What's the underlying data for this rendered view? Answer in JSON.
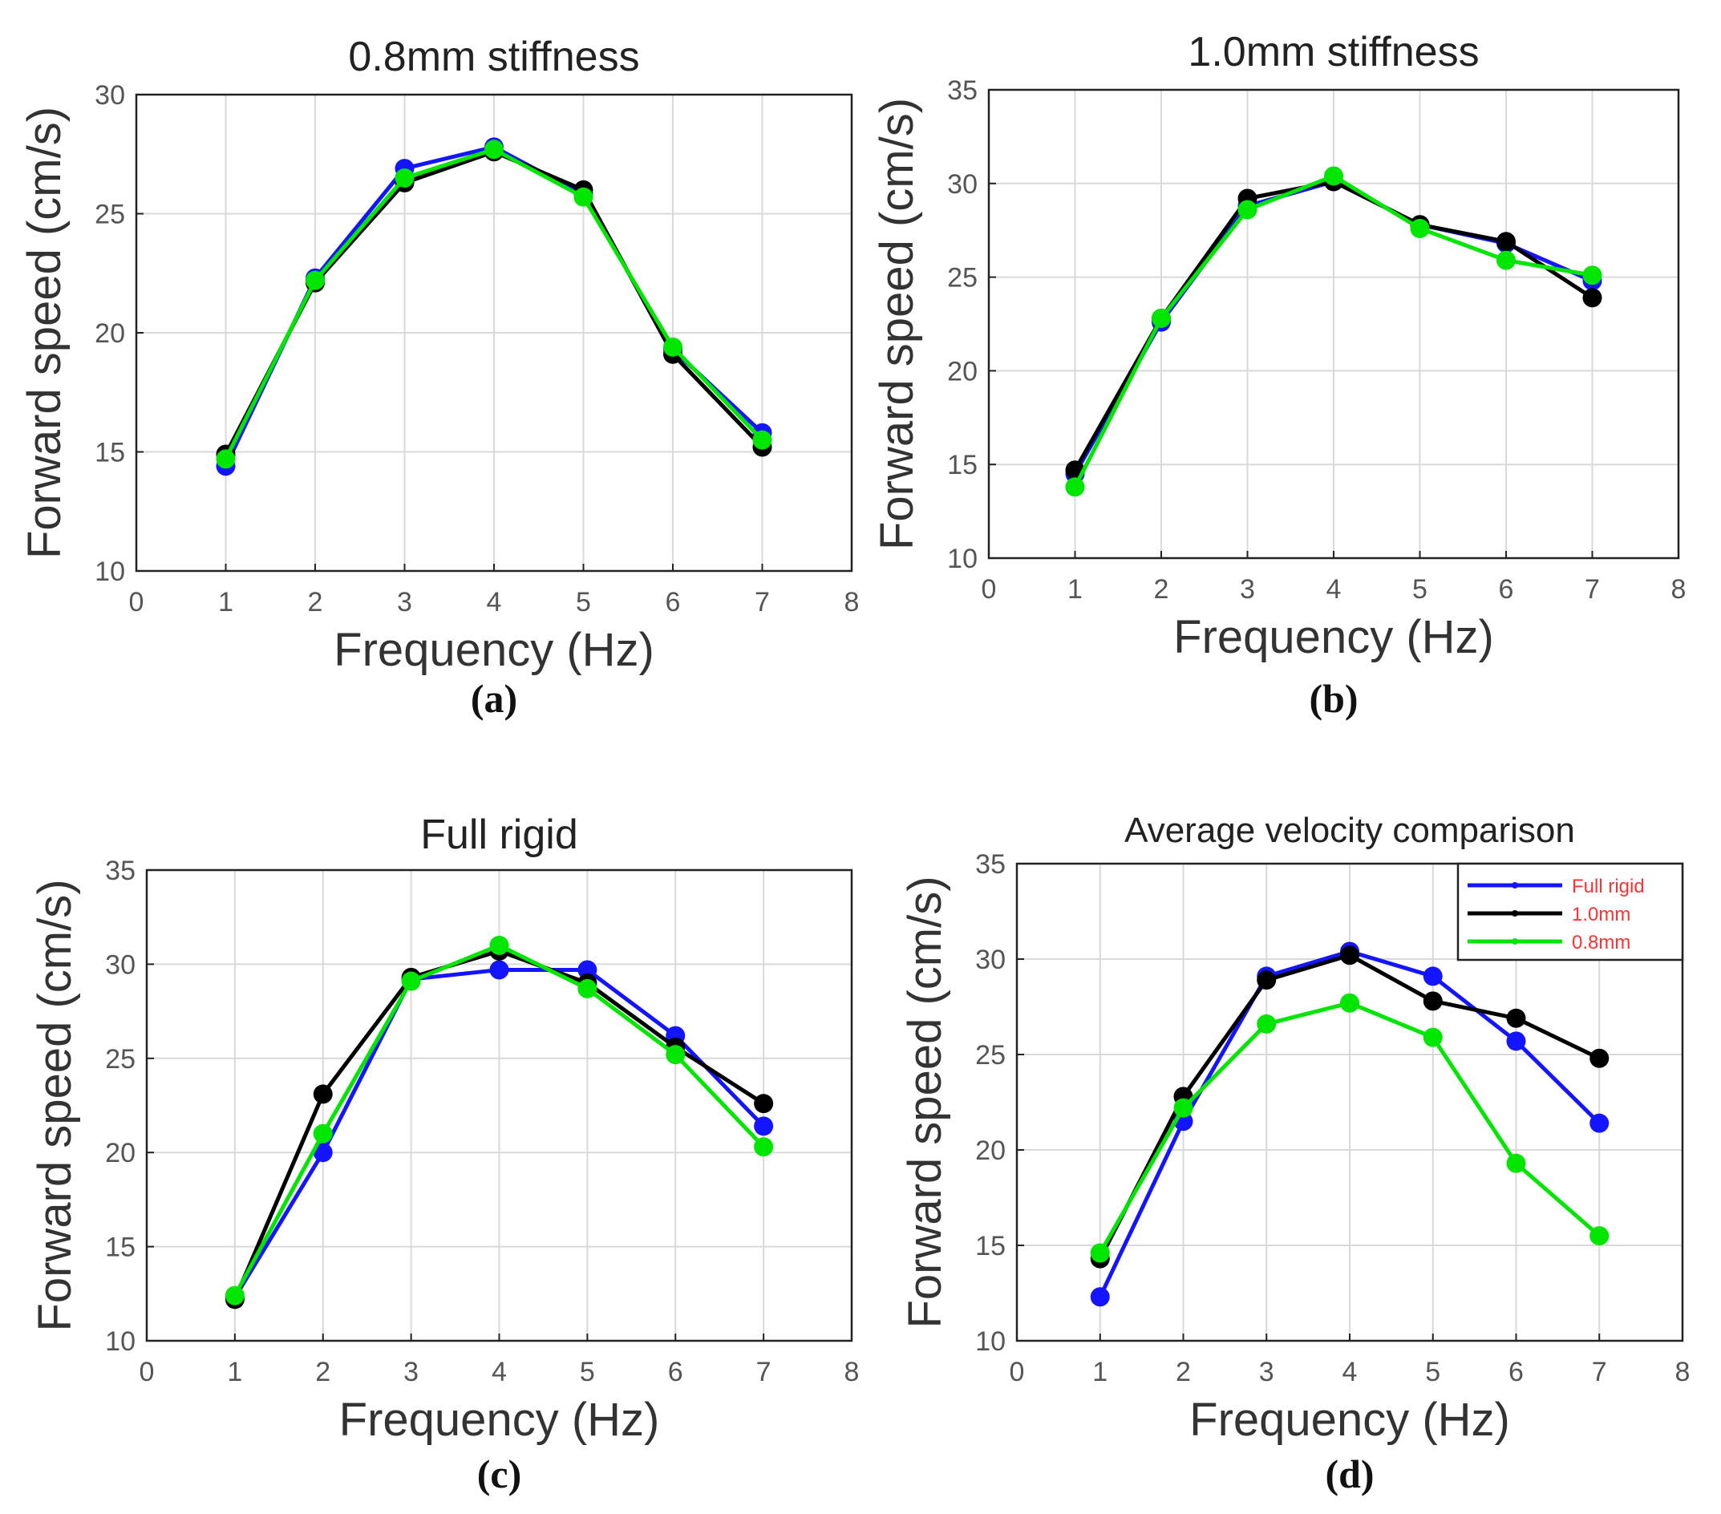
{
  "figure": {
    "colors": {
      "blue": "#1414ff",
      "black": "#000000",
      "green": "#00e600",
      "legend_text": "#ff3030",
      "grid": "#d9d9d9"
    }
  },
  "chart_data": [
    {
      "id": "a",
      "caption": "(a)",
      "type": "line",
      "title": "0.8mm stiffness",
      "xlabel": "Frequency  (Hz)",
      "ylabel": "Forward speed  (cm/s)",
      "xlim": [
        0,
        8
      ],
      "ylim": [
        10,
        30
      ],
      "xticks": [
        "0",
        "1",
        "2",
        "3",
        "4",
        "5",
        "6",
        "7",
        "8"
      ],
      "yticks": [
        "10",
        "15",
        "20",
        "25",
        "30"
      ],
      "grid": true,
      "x": [
        1,
        2,
        3,
        4,
        5,
        6,
        7
      ],
      "series": [
        {
          "color": "#1414ff",
          "values": [
            14.4,
            22.3,
            26.9,
            27.8,
            25.8,
            19.3,
            15.8
          ]
        },
        {
          "color": "#000000",
          "values": [
            14.9,
            22.1,
            26.3,
            27.6,
            26.0,
            19.1,
            15.2
          ]
        },
        {
          "color": "#00e600",
          "values": [
            14.7,
            22.2,
            26.5,
            27.7,
            25.7,
            19.4,
            15.5
          ]
        }
      ]
    },
    {
      "id": "b",
      "caption": "(b)",
      "type": "line",
      "title": "1.0mm stiffness",
      "xlabel": "Frequency  (Hz)",
      "ylabel": "Forward speed  (cm/s)",
      "xlim": [
        0,
        8
      ],
      "ylim": [
        10,
        35
      ],
      "xticks": [
        "0",
        "1",
        "2",
        "3",
        "4",
        "5",
        "6",
        "7",
        "8"
      ],
      "yticks": [
        "10",
        "15",
        "20",
        "25",
        "30",
        "35"
      ],
      "grid": true,
      "x": [
        1,
        2,
        3,
        4,
        5,
        6,
        7
      ],
      "series": [
        {
          "color": "#1414ff",
          "values": [
            14.5,
            22.6,
            28.8,
            30.1,
            27.8,
            26.8,
            24.8
          ]
        },
        {
          "color": "#000000",
          "values": [
            14.7,
            22.8,
            29.2,
            30.1,
            27.8,
            26.9,
            23.9
          ]
        },
        {
          "color": "#00e600",
          "values": [
            13.8,
            22.8,
            28.6,
            30.4,
            27.6,
            25.9,
            25.1
          ]
        }
      ]
    },
    {
      "id": "c",
      "caption": "(c)",
      "type": "line",
      "title": "Full rigid",
      "xlabel": "Frequency  (Hz)",
      "ylabel": "Forward speed  (cm/s)",
      "xlim": [
        0,
        8
      ],
      "ylim": [
        10,
        35
      ],
      "xticks": [
        "0",
        "1",
        "2",
        "3",
        "4",
        "5",
        "6",
        "7",
        "8"
      ],
      "yticks": [
        "10",
        "15",
        "20",
        "25",
        "30",
        "35"
      ],
      "grid": true,
      "x": [
        1,
        2,
        3,
        4,
        5,
        6,
        7
      ],
      "series": [
        {
          "color": "#1414ff",
          "values": [
            12.3,
            20.0,
            29.2,
            29.7,
            29.7,
            26.2,
            21.4
          ]
        },
        {
          "color": "#000000",
          "values": [
            12.2,
            23.1,
            29.3,
            30.7,
            29.0,
            25.6,
            22.6
          ]
        },
        {
          "color": "#00e600",
          "values": [
            12.4,
            21.0,
            29.1,
            31.0,
            28.7,
            25.2,
            20.3
          ]
        }
      ]
    },
    {
      "id": "d",
      "caption": "(d)",
      "type": "line",
      "title": "Average velocity comparison",
      "xlabel": "Frequency  (Hz)",
      "ylabel": "Forward speed  (cm/s)",
      "xlim": [
        0,
        8
      ],
      "ylim": [
        10,
        35
      ],
      "xticks": [
        "0",
        "1",
        "2",
        "3",
        "4",
        "5",
        "6",
        "7",
        "8"
      ],
      "yticks": [
        "10",
        "15",
        "20",
        "25",
        "30",
        "35"
      ],
      "grid": true,
      "legend": "top-right",
      "x": [
        1,
        2,
        3,
        4,
        5,
        6,
        7
      ],
      "series": [
        {
          "name": "Full rigid",
          "color": "#1414ff",
          "values": [
            12.3,
            21.5,
            29.1,
            30.4,
            29.1,
            25.7,
            21.4
          ]
        },
        {
          "name": "1.0mm",
          "color": "#000000",
          "values": [
            14.3,
            22.8,
            28.9,
            30.2,
            27.8,
            26.9,
            24.8
          ]
        },
        {
          "name": "0.8mm",
          "color": "#00e600",
          "values": [
            14.6,
            22.2,
            26.6,
            27.7,
            25.9,
            19.3,
            15.5
          ]
        }
      ]
    }
  ]
}
